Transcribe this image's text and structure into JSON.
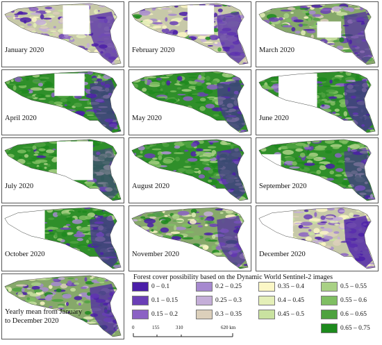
{
  "panels": [
    {
      "label": "January 2020",
      "icon": "forest-map",
      "gaps": [
        [
          0.5,
          0.05,
          0.22,
          0.45
        ]
      ],
      "green": 0.0,
      "purple": 0.35,
      "light": 0.65
    },
    {
      "label": "February 2020",
      "icon": "forest-map",
      "gaps": [
        [
          0.48,
          0.05,
          0.22,
          0.45
        ]
      ],
      "green": 0.15,
      "purple": 0.35,
      "light": 0.5
    },
    {
      "label": "March 2020",
      "icon": "forest-map",
      "gaps": [
        [
          0.5,
          0.3,
          0.2,
          0.25
        ]
      ],
      "green": 0.35,
      "purple": 0.3,
      "light": 0.35
    },
    {
      "label": "April 2020",
      "icon": "forest-map",
      "gaps": [
        [
          0.43,
          0.05,
          0.25,
          0.35
        ]
      ],
      "green": 0.75,
      "purple": 0.25,
      "light": 0.0
    },
    {
      "label": "May 2020",
      "icon": "forest-map",
      "gaps": [],
      "green": 0.75,
      "purple": 0.25,
      "light": 0.0
    },
    {
      "label": "June 2020",
      "icon": "forest-map",
      "gaps": [
        [
          0.18,
          0.05,
          0.32,
          0.55
        ]
      ],
      "green": 0.7,
      "purple": 0.3,
      "light": 0.0
    },
    {
      "label": "July 2020",
      "icon": "forest-map",
      "gaps": [
        [
          0.45,
          0.05,
          0.3,
          0.6
        ]
      ],
      "green": 0.9,
      "purple": 0.1,
      "light": 0.0
    },
    {
      "label": "August 2020",
      "icon": "forest-map",
      "gaps": [],
      "green": 0.75,
      "purple": 0.25,
      "light": 0.0
    },
    {
      "label": "September 2020",
      "icon": "forest-map",
      "gaps": [
        [
          0.0,
          0.25,
          0.2,
          0.4
        ]
      ],
      "green": 0.8,
      "purple": 0.2,
      "light": 0.0
    },
    {
      "label": "October 2020",
      "icon": "forest-map",
      "gaps": [
        [
          0.0,
          0.05,
          0.35,
          0.6
        ]
      ],
      "green": 0.7,
      "purple": 0.3,
      "light": 0.0
    },
    {
      "label": "November 2020",
      "icon": "forest-map",
      "gaps": [],
      "green": 0.4,
      "purple": 0.3,
      "light": 0.3
    },
    {
      "label": "December 2020",
      "icon": "forest-map",
      "gaps": [
        [
          0.0,
          0.05,
          0.3,
          0.8
        ]
      ],
      "green": 0.0,
      "purple": 0.45,
      "light": 0.55
    },
    {
      "label": "Yearly mean from January to December 2020",
      "icon": "forest-map",
      "gaps": [],
      "green": 0.35,
      "purple": 0.35,
      "light": 0.3
    }
  ],
  "legend": {
    "title": "Forest cover possibility based on the Dynamic World Sentinel-2  images",
    "items": [
      {
        "label": "0 – 0.1",
        "color": "#4b1fa8"
      },
      {
        "label": "0.1 – 0.15",
        "color": "#6a3fb6"
      },
      {
        "label": "0.15 – 0.2",
        "color": "#8b62c4"
      },
      {
        "label": "0.2 – 0.25",
        "color": "#a689cf"
      },
      {
        "label": "0.25 – 0.3",
        "color": "#c4aed8"
      },
      {
        "label": "0.3 – 0.35",
        "color": "#dcd0bb"
      },
      {
        "label": "0.35 – 0.4",
        "color": "#fbf7c6"
      },
      {
        "label": "0.4 – 0.45",
        "color": "#e4efb8"
      },
      {
        "label": "0.45 – 0.5",
        "color": "#c9e2a0"
      },
      {
        "label": "0.5 – 0.55",
        "color": "#a9d185"
      },
      {
        "label": "0.55 – 0.6",
        "color": "#7fbe62"
      },
      {
        "label": "0.6 – 0.65",
        "color": "#4ea23f"
      },
      {
        "label": "0.65 – 0.75",
        "color": "#1d8a1d"
      }
    ]
  },
  "scalebar": {
    "ticks": [
      "0",
      "155",
      "310",
      "620 km"
    ]
  }
}
